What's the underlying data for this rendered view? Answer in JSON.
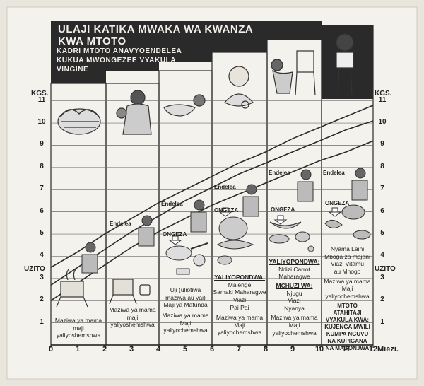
{
  "title": "ULAJI KATIKA MWAKA WA KWANZA KWA MTOTO",
  "subtitle": "KADRI MTOTO ANAVYOENDELEA KUKUA MWONGEZEE VYAKULA VINGINE",
  "y_axis_label": "KGS.",
  "y_axis_side_label": "UZITO",
  "x_axis_unit": "Miezi.",
  "chart_data": {
    "type": "line",
    "x": [
      0,
      1,
      2,
      3,
      4,
      5,
      6,
      7,
      8,
      9,
      10,
      11,
      12
    ],
    "y_ticks": [
      1,
      2,
      3,
      4,
      5,
      6,
      7,
      8,
      9,
      10,
      11
    ],
    "x_ticks": [
      0,
      1,
      2,
      3,
      4,
      5,
      6,
      7,
      8,
      9,
      10,
      11,
      12
    ],
    "ylim": [
      0,
      11.5
    ],
    "xlim": [
      0,
      12
    ],
    "series": [
      {
        "values": [
          3.5,
          4.2,
          5.0,
          5.7,
          6.4,
          7.0,
          7.6,
          8.2,
          8.7,
          9.3,
          9.8,
          10.3,
          10.8
        ]
      },
      {
        "values": [
          2.7,
          3.5,
          4.3,
          5.1,
          5.8,
          6.5,
          7.1,
          7.7,
          8.2,
          8.7,
          9.2,
          9.7,
          10.1
        ]
      },
      {
        "values": [
          2.0,
          2.8,
          3.6,
          4.4,
          5.1,
          5.7,
          6.3,
          6.8,
          7.3,
          7.8,
          8.3,
          8.7,
          9.2
        ]
      }
    ]
  },
  "labels": {
    "endelea": "Endelea",
    "ongeza": "ONGEZA"
  },
  "stage1": {
    "lines": [
      "Maziwa ya mama",
      "maji",
      "yaliyoshemshwa"
    ]
  },
  "stage2": {
    "lines": [
      "Maziwa ya mama",
      "maji",
      "yaliyoshemshwa"
    ]
  },
  "stage3": {
    "lines": [
      "Uji  (uliotiwa",
      "maziwa au yai)",
      "Maji ya Matunda",
      "Maziwa ya mama",
      "Maji",
      "yaliyochemshwa"
    ]
  },
  "stage4": {
    "heading": "YALIYOPONDWA:",
    "lines": [
      "Malenge",
      "Samaki Maharagwe",
      "Viazi",
      "Pai Pai",
      "Maziwa ya mama",
      "Maji",
      "yaliyochemshwa"
    ]
  },
  "stage5": {
    "heading1": "YALIYOPONDWA:",
    "lines1": [
      "Ndizi  Carrot",
      "Maharagwe"
    ],
    "heading2": "MCHUZI WA:",
    "lines2": [
      "Njugu",
      "Viazi",
      "Nyanya",
      "Maziwa ya mama",
      "Maji",
      "yaliyochemshwa"
    ]
  },
  "stage6": {
    "lines": [
      "Nyama Laini",
      "Mboga za majani",
      "Viazi Vitamu",
      "au Mhogo",
      "Maziwa ya mama",
      "Maji",
      "yaliyochemshwa"
    ],
    "note": [
      "MTOTO",
      "ATAHITAJI",
      "VYAKULA KWA:",
      "KUJENGA MWILI",
      "KUMPA NGUVU",
      "NA KUPIGANA",
      "NA MAGONJWA"
    ]
  },
  "colors": {
    "paper": "#f4f2ec",
    "ink": "#2a2a2a",
    "background": "#e8e5dd"
  }
}
